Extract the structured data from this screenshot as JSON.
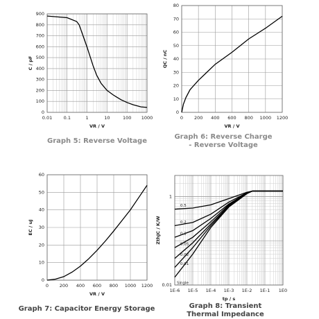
{
  "chart_data": [
    {
      "type": "line",
      "caption": [
        "Graph 5: Reverse Voltage"
      ],
      "caption_color": "#8a8a8a",
      "x_label": "VR / V",
      "y_label": "C / pF",
      "xlog": true,
      "ylog": false,
      "grid": true,
      "color": "#000000",
      "x": [
        0.01,
        0.1,
        0.3,
        0.4,
        0.6,
        1,
        2,
        3,
        5,
        10,
        20,
        30,
        50,
        100,
        200,
        500,
        1000
      ],
      "values": [
        880,
        865,
        830,
        800,
        710,
        595,
        425,
        340,
        265,
        200,
        160,
        140,
        115,
        90,
        70,
        50,
        45
      ],
      "xlim": [
        0.01,
        1000
      ],
      "xticks": [
        0.01,
        0.1,
        1,
        10,
        100,
        1000
      ],
      "ylim": [
        0,
        900
      ],
      "yticks": [
        0,
        100,
        200,
        300,
        400,
        500,
        600,
        700,
        800,
        900
      ]
    },
    {
      "type": "line",
      "caption": [
        "Graph 6: Reverse Charge",
        "- Reverse Voltage"
      ],
      "caption_color": "#8a8a8a",
      "x_label": "VR / V",
      "y_label": "QC / nC",
      "xlog": false,
      "ylog": false,
      "grid": true,
      "color": "#000000",
      "x": [
        0,
        20,
        50,
        100,
        200,
        300,
        400,
        600,
        800,
        1000,
        1200
      ],
      "values": [
        0,
        6,
        11,
        17,
        24,
        30,
        36,
        45,
        55,
        63,
        72
      ],
      "xlim": [
        0,
        1200
      ],
      "xticks": [
        0,
        200,
        400,
        600,
        800,
        1000,
        1200
      ],
      "ylim": [
        0,
        80
      ],
      "yticks": [
        0,
        10,
        20,
        30,
        40,
        50,
        60,
        70,
        80
      ]
    },
    {
      "type": "line",
      "caption": [
        "Graph 7: Capacitor Energy Storage"
      ],
      "caption_color": "#444444",
      "x_label": "VR / V",
      "y_label": "EC / uJ",
      "xlog": false,
      "ylog": false,
      "grid": true,
      "color": "#000000",
      "x": [
        0,
        100,
        200,
        300,
        400,
        500,
        600,
        700,
        800,
        900,
        1000,
        1100,
        1200
      ],
      "values": [
        0,
        0.6,
        2,
        4.6,
        8,
        12.2,
        17,
        22.3,
        28,
        34,
        40,
        47,
        54
      ],
      "xlim": [
        0,
        1200
      ],
      "xticks": [
        0,
        200,
        400,
        600,
        800,
        1000,
        1200
      ],
      "ylim": [
        0,
        60
      ],
      "yticks": [
        0,
        10,
        20,
        30,
        40,
        50,
        60
      ]
    },
    {
      "type": "line",
      "caption": [
        "Graph 8: Transient",
        "Thermal Impedance"
      ],
      "caption_color": "#444444",
      "x_label": "tp / s",
      "y_label": "ZthJC / K/W",
      "xlog": true,
      "ylog": true,
      "grid": true,
      "x": [
        1e-06,
        1e-05,
        0.0001,
        0.001,
        0.01,
        0.02,
        0.1,
        1
      ],
      "series": [
        {
          "name": "0.5",
          "color": "#000000",
          "values": [
            0.52,
            0.55,
            0.65,
            0.9,
            1.25,
            1.33,
            1.33,
            1.33
          ]
        },
        {
          "name": "0.2",
          "color": "#000000",
          "values": [
            0.22,
            0.26,
            0.4,
            0.75,
            1.22,
            1.33,
            1.33,
            1.33
          ]
        },
        {
          "name": "0.1",
          "color": "#000000",
          "values": [
            0.12,
            0.17,
            0.32,
            0.68,
            1.2,
            1.33,
            1.33,
            1.33
          ]
        },
        {
          "name": "0.05",
          "color": "#000000",
          "values": [
            0.07,
            0.12,
            0.27,
            0.65,
            1.19,
            1.33,
            1.33,
            1.33
          ]
        },
        {
          "name": "0.02",
          "color": "#000000",
          "values": [
            0.04,
            0.09,
            0.24,
            0.62,
            1.18,
            1.33,
            1.33,
            1.33
          ]
        },
        {
          "name": "0.01",
          "color": "#000000",
          "values": [
            0.025,
            0.07,
            0.22,
            0.6,
            1.17,
            1.33,
            1.33,
            1.33
          ]
        },
        {
          "name": "Single",
          "color": "#000000",
          "values": [
            0.015,
            0.05,
            0.2,
            0.58,
            1.16,
            1.33,
            1.33,
            1.33
          ]
        }
      ],
      "xlim": [
        1e-06,
        1
      ],
      "xticks": [
        {
          "value": 1e-06,
          "label": "1E-6"
        },
        {
          "value": 1e-05,
          "label": "1E-5"
        },
        {
          "value": 0.0001,
          "label": "1E-4"
        },
        {
          "value": 0.001,
          "label": "1E-3"
        },
        {
          "value": 0.01,
          "label": "1E-2"
        },
        {
          "value": 0.1,
          "label": "1E-1"
        },
        {
          "value": 1,
          "label": "1E0"
        }
      ],
      "ylim": [
        0.01,
        3
      ],
      "yticks": [
        0.01,
        1
      ]
    }
  ]
}
